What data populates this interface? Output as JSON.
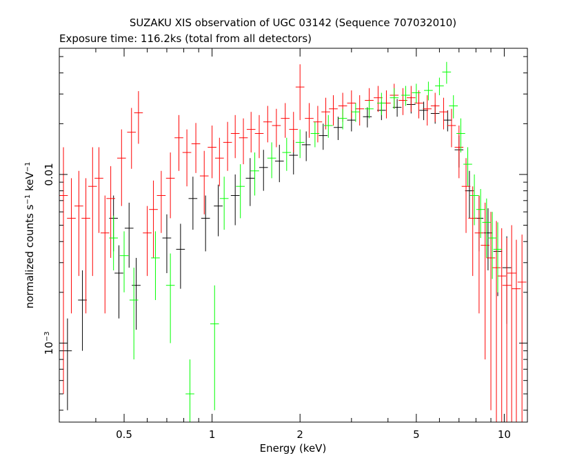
{
  "chart_data": {
    "type": "scatter",
    "title": "SUZAKU XIS observation of UGC 03142 (Sequence 707032010)",
    "subtitle": "Exposure time: 116.2ks (total from all detectors)",
    "xlabel": "Energy (keV)",
    "ylabel": {
      "prefix": "normalized counts s",
      "exp1": "−1",
      "middle": " keV",
      "exp2": "−1"
    },
    "x_scale": "log",
    "y_scale": "log",
    "xlim": [
      0.3,
      12.0
    ],
    "ylim": [
      0.00034,
      0.056
    ],
    "x_ticks": [
      {
        "value": 0.5,
        "label": "0.5"
      },
      {
        "value": 1,
        "label": "1"
      },
      {
        "value": 2,
        "label": "2"
      },
      {
        "value": 5,
        "label": "5"
      },
      {
        "value": 10,
        "label": "10"
      }
    ],
    "y_ticks": [
      {
        "value": 0.001,
        "label_base": "10",
        "label_exp": "−3"
      },
      {
        "value": 0.01,
        "label": "0.01"
      }
    ],
    "grid": false,
    "series": [
      {
        "color": "#000000",
        "points": [
          [
            0.32,
            0.0009,
            0.0005
          ],
          [
            0.36,
            0.0018,
            0.0009
          ],
          [
            0.46,
            0.0055,
            0.002
          ],
          [
            0.48,
            0.0026,
            0.0012
          ],
          [
            0.52,
            0.0048,
            0.002
          ],
          [
            0.55,
            0.0022,
            0.001
          ],
          [
            0.7,
            0.0042,
            0.0016
          ],
          [
            0.78,
            0.0036,
            0.0015
          ],
          [
            0.86,
            0.0072,
            0.0025
          ],
          [
            0.95,
            0.0055,
            0.002
          ],
          [
            1.05,
            0.0065,
            0.0022
          ],
          [
            1.2,
            0.0075,
            0.0025
          ],
          [
            1.35,
            0.0095,
            0.003
          ],
          [
            1.5,
            0.011,
            0.003
          ],
          [
            1.7,
            0.012,
            0.003
          ],
          [
            1.9,
            0.013,
            0.003
          ],
          [
            2.1,
            0.015,
            0.003
          ],
          [
            2.4,
            0.017,
            0.003
          ],
          [
            2.7,
            0.019,
            0.003
          ],
          [
            3.0,
            0.021,
            0.003
          ],
          [
            3.4,
            0.022,
            0.003
          ],
          [
            3.8,
            0.024,
            0.003
          ],
          [
            4.3,
            0.025,
            0.003
          ],
          [
            4.8,
            0.026,
            0.003
          ],
          [
            5.3,
            0.024,
            0.003
          ],
          [
            5.8,
            0.023,
            0.003
          ],
          [
            6.4,
            0.021,
            0.003
          ],
          [
            7.0,
            0.014,
            0.003
          ],
          [
            7.6,
            0.008,
            0.0025
          ],
          [
            8.2,
            0.0055,
            0.002
          ],
          [
            8.8,
            0.0045,
            0.0018
          ],
          [
            9.5,
            0.0035,
            0.0016
          ],
          [
            10.2,
            0.0028,
            0.0015
          ]
        ]
      },
      {
        "color": "#ff0000",
        "points": [
          [
            0.31,
            0.0075,
            0.007
          ],
          [
            0.33,
            0.0055,
            0.004
          ],
          [
            0.35,
            0.0065,
            0.004
          ],
          [
            0.37,
            0.0055,
            0.004
          ],
          [
            0.39,
            0.0085,
            0.006
          ],
          [
            0.41,
            0.0095,
            0.005
          ],
          [
            0.43,
            0.0045,
            0.003
          ],
          [
            0.45,
            0.0072,
            0.004
          ],
          [
            0.49,
            0.0125,
            0.006
          ],
          [
            0.53,
            0.0178,
            0.007
          ],
          [
            0.56,
            0.0232,
            0.008
          ],
          [
            0.6,
            0.0045,
            0.002
          ],
          [
            0.63,
            0.0062,
            0.003
          ],
          [
            0.67,
            0.0075,
            0.003
          ],
          [
            0.72,
            0.0095,
            0.004
          ],
          [
            0.77,
            0.0165,
            0.006
          ],
          [
            0.82,
            0.0135,
            0.005
          ],
          [
            0.88,
            0.0152,
            0.005
          ],
          [
            0.94,
            0.0098,
            0.004
          ],
          [
            1.0,
            0.0145,
            0.005
          ],
          [
            1.06,
            0.0125,
            0.004
          ],
          [
            1.13,
            0.0155,
            0.005
          ],
          [
            1.2,
            0.0175,
            0.005
          ],
          [
            1.28,
            0.0165,
            0.005
          ],
          [
            1.36,
            0.0185,
            0.005
          ],
          [
            1.45,
            0.0175,
            0.005
          ],
          [
            1.55,
            0.0205,
            0.005
          ],
          [
            1.66,
            0.0195,
            0.005
          ],
          [
            1.78,
            0.0215,
            0.005
          ],
          [
            1.9,
            0.0185,
            0.005
          ],
          [
            2.0,
            0.033,
            0.012
          ],
          [
            2.15,
            0.0215,
            0.005
          ],
          [
            2.3,
            0.0205,
            0.005
          ],
          [
            2.45,
            0.0235,
            0.005
          ],
          [
            2.6,
            0.0245,
            0.005
          ],
          [
            2.8,
            0.0255,
            0.005
          ],
          [
            3.0,
            0.0265,
            0.005
          ],
          [
            3.2,
            0.0245,
            0.005
          ],
          [
            3.45,
            0.0275,
            0.005
          ],
          [
            3.7,
            0.0285,
            0.005
          ],
          [
            3.95,
            0.0265,
            0.005
          ],
          [
            4.2,
            0.0295,
            0.005
          ],
          [
            4.5,
            0.0275,
            0.005
          ],
          [
            4.8,
            0.0285,
            0.005
          ],
          [
            5.1,
            0.0265,
            0.005
          ],
          [
            5.45,
            0.0245,
            0.005
          ],
          [
            5.8,
            0.0255,
            0.005
          ],
          [
            6.2,
            0.0235,
            0.005
          ],
          [
            6.6,
            0.0195,
            0.005
          ],
          [
            7.0,
            0.0145,
            0.005
          ],
          [
            7.4,
            0.0085,
            0.004
          ],
          [
            7.8,
            0.0055,
            0.003
          ],
          [
            8.2,
            0.0045,
            0.003
          ],
          [
            8.6,
            0.0038,
            0.003
          ],
          [
            9.0,
            0.0032,
            0.0028
          ],
          [
            9.4,
            0.0028,
            0.0025
          ],
          [
            9.8,
            0.0025,
            0.0023
          ],
          [
            10.2,
            0.0022,
            0.002
          ],
          [
            10.6,
            0.0026,
            0.0024
          ],
          [
            11.0,
            0.0021,
            0.002
          ],
          [
            11.5,
            0.0023,
            0.0021
          ]
        ]
      },
      {
        "color": "#00ff00",
        "points": [
          [
            0.46,
            0.0042,
            0.0015
          ],
          [
            0.5,
            0.0033,
            0.0013
          ],
          [
            0.54,
            0.0018,
            0.001
          ],
          [
            0.64,
            0.0032,
            0.0014
          ],
          [
            0.72,
            0.0022,
            0.0012
          ],
          [
            0.84,
            0.0005,
            0.0003
          ],
          [
            1.02,
            0.0013,
            0.0009
          ],
          [
            1.1,
            0.0072,
            0.0025
          ],
          [
            1.25,
            0.0085,
            0.003
          ],
          [
            1.4,
            0.0105,
            0.003
          ],
          [
            1.6,
            0.0125,
            0.003
          ],
          [
            1.8,
            0.0135,
            0.003
          ],
          [
            2.0,
            0.0155,
            0.003
          ],
          [
            2.25,
            0.0175,
            0.003
          ],
          [
            2.5,
            0.0195,
            0.003
          ],
          [
            2.8,
            0.0215,
            0.003
          ],
          [
            3.1,
            0.0235,
            0.003
          ],
          [
            3.45,
            0.0245,
            0.003
          ],
          [
            3.8,
            0.0265,
            0.004
          ],
          [
            4.2,
            0.0285,
            0.004
          ],
          [
            4.6,
            0.0295,
            0.004
          ],
          [
            5.0,
            0.0305,
            0.004
          ],
          [
            5.5,
            0.0315,
            0.004
          ],
          [
            6.0,
            0.0335,
            0.004
          ],
          [
            6.35,
            0.0405,
            0.006
          ],
          [
            6.7,
            0.0255,
            0.004
          ],
          [
            7.1,
            0.0175,
            0.004
          ],
          [
            7.5,
            0.0115,
            0.003
          ],
          [
            7.9,
            0.0075,
            0.0025
          ],
          [
            8.3,
            0.0062,
            0.002
          ],
          [
            8.7,
            0.0052,
            0.002
          ],
          [
            9.1,
            0.0042,
            0.0018
          ],
          [
            9.5,
            0.0036,
            0.0016
          ]
        ]
      }
    ]
  }
}
